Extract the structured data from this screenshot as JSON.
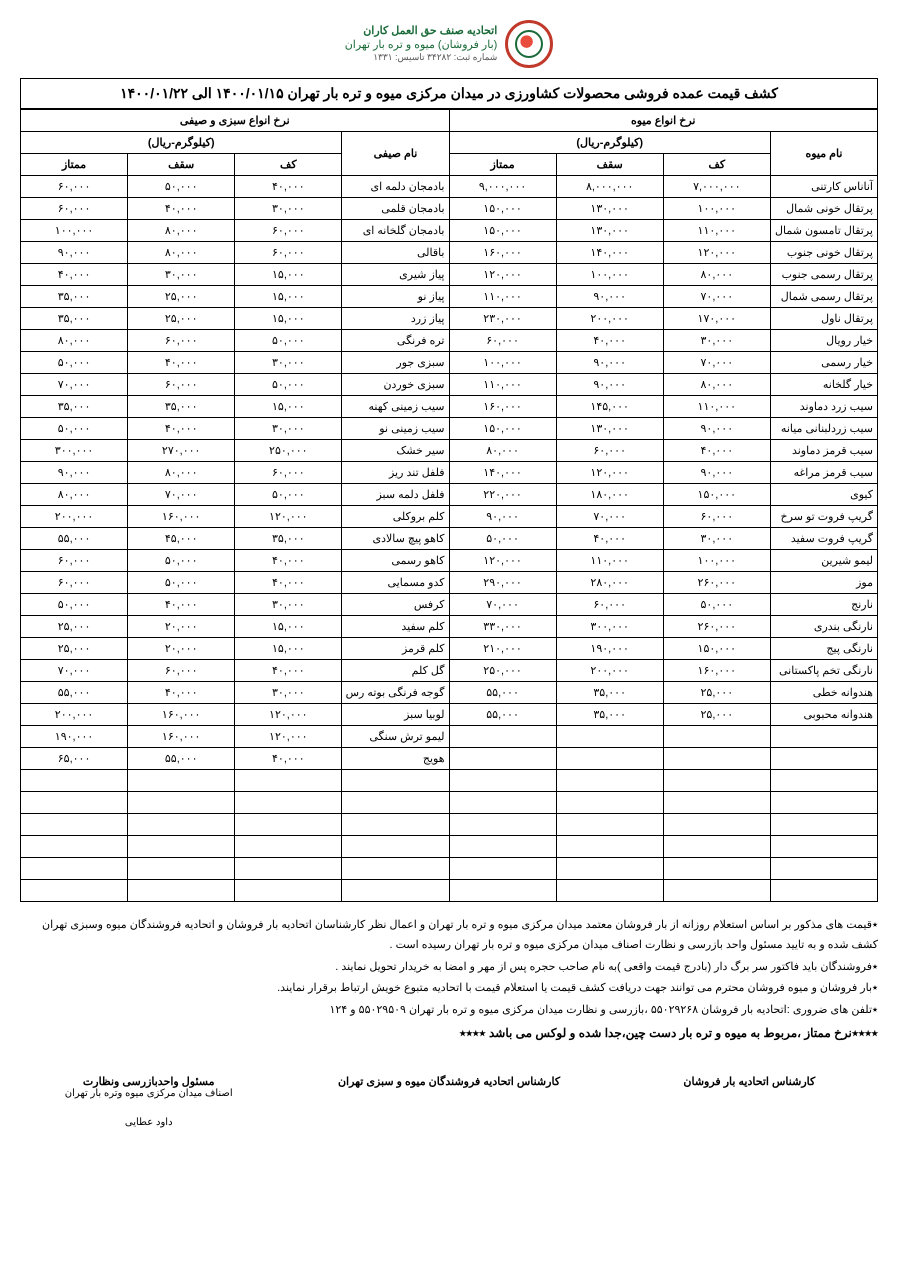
{
  "org": {
    "line1": "اتحادیه صنف حق العمل کاران",
    "line2": "(بار فروشان) میوه و تره بار تهران",
    "reg": "شماره ثبت: ۳۴۲۸۲   تاسیس: ۱۳۳۱"
  },
  "title": "کشف قیمت عمده فروشی محصولات کشاورزی در میدان مرکزی میوه و تره بار تهران   ۱۴۰۰/۰۱/۱۵  الی  ۱۴۰۰/۰۱/۲۲",
  "headers": {
    "fruit_section": "نرخ انواع میوه",
    "veg_section": "نرخ انواع سبزی و صیفی",
    "unit": "(کیلوگرم-ریال)",
    "name_fruit": "نام میوه",
    "name_veg": "نام صیفی",
    "kaf": "کف",
    "saghf": "سقف",
    "momtaz": "ممتاز"
  },
  "fruit_rows": [
    {
      "n": "آناناس کارتنی",
      "k": "۷,۰۰۰,۰۰۰",
      "s": "۸,۰۰۰,۰۰۰",
      "m": "۹,۰۰۰,۰۰۰"
    },
    {
      "n": "پرتقال خونی شمال",
      "k": "۱۰۰,۰۰۰",
      "s": "۱۳۰,۰۰۰",
      "m": "۱۵۰,۰۰۰"
    },
    {
      "n": "پرتقال تامسون شمال",
      "k": "۱۱۰,۰۰۰",
      "s": "۱۳۰,۰۰۰",
      "m": "۱۵۰,۰۰۰"
    },
    {
      "n": "پرتقال خونی جنوب",
      "k": "۱۲۰,۰۰۰",
      "s": "۱۴۰,۰۰۰",
      "m": "۱۶۰,۰۰۰"
    },
    {
      "n": "پرتقال رسمی جنوب",
      "k": "۸۰,۰۰۰",
      "s": "۱۰۰,۰۰۰",
      "m": "۱۲۰,۰۰۰"
    },
    {
      "n": "پرتقال رسمی شمال",
      "k": "۷۰,۰۰۰",
      "s": "۹۰,۰۰۰",
      "m": "۱۱۰,۰۰۰"
    },
    {
      "n": "پرتقال ناول",
      "k": "۱۷۰,۰۰۰",
      "s": "۲۰۰,۰۰۰",
      "m": "۲۳۰,۰۰۰"
    },
    {
      "n": "خیار رویال",
      "k": "۳۰,۰۰۰",
      "s": "۴۰,۰۰۰",
      "m": "۶۰,۰۰۰"
    },
    {
      "n": "خیار رسمی",
      "k": "۷۰,۰۰۰",
      "s": "۹۰,۰۰۰",
      "m": "۱۰۰,۰۰۰"
    },
    {
      "n": "خیار گلخانه",
      "k": "۸۰,۰۰۰",
      "s": "۹۰,۰۰۰",
      "m": "۱۱۰,۰۰۰"
    },
    {
      "n": "سیب زرد دماوند",
      "k": "۱۱۰,۰۰۰",
      "s": "۱۴۵,۰۰۰",
      "m": "۱۶۰,۰۰۰"
    },
    {
      "n": "سیب زردلبنانی میانه",
      "k": "۹۰,۰۰۰",
      "s": "۱۳۰,۰۰۰",
      "m": "۱۵۰,۰۰۰"
    },
    {
      "n": "سیب قرمز دماوند",
      "k": "۴۰,۰۰۰",
      "s": "۶۰,۰۰۰",
      "m": "۸۰,۰۰۰"
    },
    {
      "n": "سیب قرمز مراغه",
      "k": "۹۰,۰۰۰",
      "s": "۱۲۰,۰۰۰",
      "m": "۱۴۰,۰۰۰"
    },
    {
      "n": "کیوی",
      "k": "۱۵۰,۰۰۰",
      "s": "۱۸۰,۰۰۰",
      "m": "۲۲۰,۰۰۰"
    },
    {
      "n": "گریپ فروت تو سرخ",
      "k": "۶۰,۰۰۰",
      "s": "۷۰,۰۰۰",
      "m": "۹۰,۰۰۰"
    },
    {
      "n": "گریپ فروت سفید",
      "k": "۳۰,۰۰۰",
      "s": "۴۰,۰۰۰",
      "m": "۵۰,۰۰۰"
    },
    {
      "n": "لیمو شیرین",
      "k": "۱۰۰,۰۰۰",
      "s": "۱۱۰,۰۰۰",
      "m": "۱۲۰,۰۰۰"
    },
    {
      "n": "موز",
      "k": "۲۶۰,۰۰۰",
      "s": "۲۸۰,۰۰۰",
      "m": "۲۹۰,۰۰۰"
    },
    {
      "n": "نارنج",
      "k": "۵۰,۰۰۰",
      "s": "۶۰,۰۰۰",
      "m": "۷۰,۰۰۰"
    },
    {
      "n": "نارنگی بندری",
      "k": "۲۶۰,۰۰۰",
      "s": "۳۰۰,۰۰۰",
      "m": "۳۳۰,۰۰۰"
    },
    {
      "n": "نارنگی پیج",
      "k": "۱۵۰,۰۰۰",
      "s": "۱۹۰,۰۰۰",
      "m": "۲۱۰,۰۰۰"
    },
    {
      "n": "نارنگی تخم پاکستانی",
      "k": "۱۶۰,۰۰۰",
      "s": "۲۰۰,۰۰۰",
      "m": "۲۵۰,۰۰۰"
    },
    {
      "n": "هندوانه خطی",
      "k": "۲۵,۰۰۰",
      "s": "۳۵,۰۰۰",
      "m": "۵۵,۰۰۰"
    },
    {
      "n": "هندوانه محبوبی",
      "k": "۲۵,۰۰۰",
      "s": "۳۵,۰۰۰",
      "m": "۵۵,۰۰۰"
    }
  ],
  "veg_rows": [
    {
      "n": "بادمجان دلمه ای",
      "k": "۴۰,۰۰۰",
      "s": "۵۰,۰۰۰",
      "m": "۶۰,۰۰۰"
    },
    {
      "n": "بادمجان قلمی",
      "k": "۳۰,۰۰۰",
      "s": "۴۰,۰۰۰",
      "m": "۶۰,۰۰۰"
    },
    {
      "n": "بادمجان گلخانه ای",
      "k": "۶۰,۰۰۰",
      "s": "۸۰,۰۰۰",
      "m": "۱۰۰,۰۰۰"
    },
    {
      "n": "باقالی",
      "k": "۶۰,۰۰۰",
      "s": "۸۰,۰۰۰",
      "m": "۹۰,۰۰۰"
    },
    {
      "n": "پیاز شیری",
      "k": "۱۵,۰۰۰",
      "s": "۳۰,۰۰۰",
      "m": "۴۰,۰۰۰"
    },
    {
      "n": "پیاز نو",
      "k": "۱۵,۰۰۰",
      "s": "۲۵,۰۰۰",
      "m": "۳۵,۰۰۰"
    },
    {
      "n": "پیاز زرد",
      "k": "۱۵,۰۰۰",
      "s": "۲۵,۰۰۰",
      "m": "۳۵,۰۰۰"
    },
    {
      "n": "تره فرنگی",
      "k": "۵۰,۰۰۰",
      "s": "۶۰,۰۰۰",
      "m": "۸۰,۰۰۰"
    },
    {
      "n": "سبزی جور",
      "k": "۳۰,۰۰۰",
      "s": "۴۰,۰۰۰",
      "m": "۵۰,۰۰۰"
    },
    {
      "n": "سبزی خوردن",
      "k": "۵۰,۰۰۰",
      "s": "۶۰,۰۰۰",
      "m": "۷۰,۰۰۰"
    },
    {
      "n": "سیب زمینی کهنه",
      "k": "۱۵,۰۰۰",
      "s": "۳۵,۰۰۰",
      "m": "۳۵,۰۰۰"
    },
    {
      "n": "سیب زمینی نو",
      "k": "۳۰,۰۰۰",
      "s": "۴۰,۰۰۰",
      "m": "۵۰,۰۰۰"
    },
    {
      "n": "سیر خشک",
      "k": "۲۵۰,۰۰۰",
      "s": "۲۷۰,۰۰۰",
      "m": "۳۰۰,۰۰۰"
    },
    {
      "n": "فلفل تند ریز",
      "k": "۶۰,۰۰۰",
      "s": "۸۰,۰۰۰",
      "m": "۹۰,۰۰۰"
    },
    {
      "n": "فلفل دلمه سبز",
      "k": "۵۰,۰۰۰",
      "s": "۷۰,۰۰۰",
      "m": "۸۰,۰۰۰"
    },
    {
      "n": "کلم بروکلی",
      "k": "۱۲۰,۰۰۰",
      "s": "۱۶۰,۰۰۰",
      "m": "۲۰۰,۰۰۰"
    },
    {
      "n": "کاهو پیچ سالادی",
      "k": "۳۵,۰۰۰",
      "s": "۴۵,۰۰۰",
      "m": "۵۵,۰۰۰"
    },
    {
      "n": "کاهو رسمی",
      "k": "۴۰,۰۰۰",
      "s": "۵۰,۰۰۰",
      "m": "۶۰,۰۰۰"
    },
    {
      "n": "کدو مسمایی",
      "k": "۴۰,۰۰۰",
      "s": "۵۰,۰۰۰",
      "m": "۶۰,۰۰۰"
    },
    {
      "n": "کرفس",
      "k": "۳۰,۰۰۰",
      "s": "۴۰,۰۰۰",
      "m": "۵۰,۰۰۰"
    },
    {
      "n": "کلم سفید",
      "k": "۱۵,۰۰۰",
      "s": "۲۰,۰۰۰",
      "m": "۲۵,۰۰۰"
    },
    {
      "n": "کلم قرمز",
      "k": "۱۵,۰۰۰",
      "s": "۲۰,۰۰۰",
      "m": "۲۵,۰۰۰"
    },
    {
      "n": "گل کلم",
      "k": "۴۰,۰۰۰",
      "s": "۶۰,۰۰۰",
      "m": "۷۰,۰۰۰"
    },
    {
      "n": "گوجه فرنگی بوته رس",
      "k": "۳۰,۰۰۰",
      "s": "۴۰,۰۰۰",
      "m": "۵۵,۰۰۰"
    },
    {
      "n": "لوبیا سبز",
      "k": "۱۲۰,۰۰۰",
      "s": "۱۶۰,۰۰۰",
      "m": "۲۰۰,۰۰۰"
    },
    {
      "n": "لیمو ترش سنگی",
      "k": "۱۲۰,۰۰۰",
      "s": "۱۶۰,۰۰۰",
      "m": "۱۹۰,۰۰۰"
    },
    {
      "n": "هویج",
      "k": "۴۰,۰۰۰",
      "s": "۵۵,۰۰۰",
      "m": "۶۵,۰۰۰"
    }
  ],
  "empty_rows": 6,
  "notes": [
    "٭قیمت های مذکور بر اساس استعلام روزانه از بار فروشان معتمد میدان مرکزی میوه و تره بار تهران و اعمال نظر کارشناسان اتحادیه بار فروشان و اتحادیه فروشندگان میوه وسبزی تهران کشف شده و به تایید مسئول واحد بازرسی و نظارت اصناف میدان مرکزی میوه و تره بار تهران رسیده است .",
    "٭فروشندگان باید فاکتور سر برگ دار (بادرج قیمت واقعی )به نام صاحب حجره پس از مهر و امضا به خریدار تحویل نمایند .",
    "٭بار فروشان و میوه فروشان محترم می توانند جهت دریافت کشف قیمت  یا استعلام قیمت با اتحادیه متبوع خویش ارتباط برقرار نمایند.",
    "٭تلفن های ضروری :اتحادیه بار فروشان ۵۵۰۲۹۲۶۸  ،بازرسی و نظارت میدان مرکزی میوه و تره بار  تهران ۵۵۰۲۹۵۰۹   و  ۱۲۴"
  ],
  "bold_note": "٭٭٭٭نرخ ممتاز ،مربوط به میوه و تره بار دست چین،جدا شده و لوکس می باشد ٭٭٭٭",
  "sig": {
    "right": {
      "l1": "کارشناس اتحادیه بار فروشان",
      "l2": ""
    },
    "center": {
      "l1": "کارشناس اتحادیه فروشندگان میوه و سبزی تهران",
      "l2": ""
    },
    "left": {
      "l1": "مسئول واحدبازرسی ونظارت",
      "l2": "اصناف میدان مرکزی میوه وتره بار تهران",
      "l3": "داود عطایی"
    }
  }
}
